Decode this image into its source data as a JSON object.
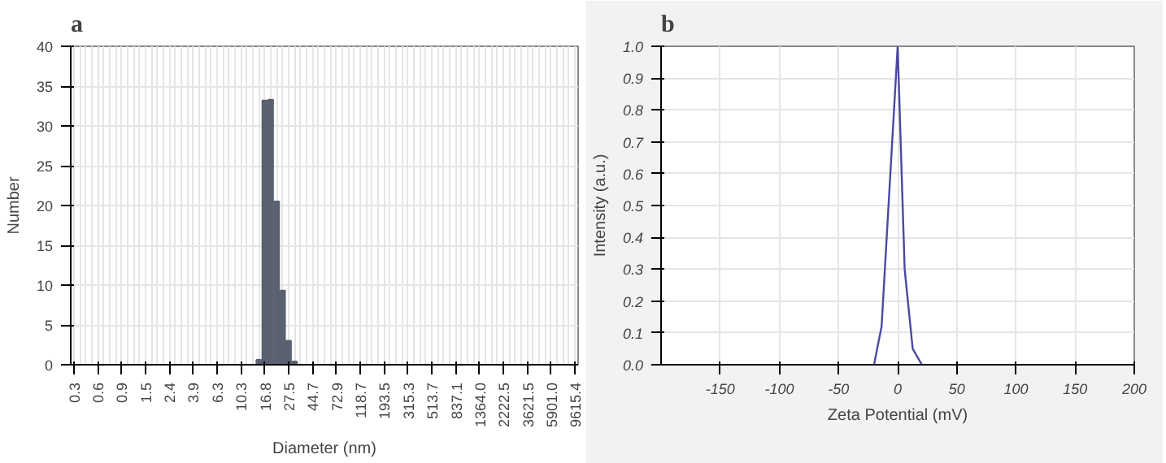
{
  "chart_data": [
    {
      "type": "bar",
      "title": "a",
      "xlabel": "Diameter (nm)",
      "ylabel": "Number",
      "categories": [
        "0.3",
        null,
        null,
        null,
        "0.6",
        null,
        null,
        null,
        "0.9",
        null,
        null,
        null,
        "1.5",
        null,
        null,
        null,
        "2.4",
        null,
        null,
        null,
        "3.9",
        null,
        null,
        null,
        "6.3",
        null,
        null,
        null,
        "10.3",
        null,
        null,
        null,
        "16.8",
        null,
        null,
        null,
        "27.5",
        null,
        null,
        null,
        "44.7",
        null,
        null,
        null,
        "72.9",
        null,
        null,
        null,
        "118.7",
        null,
        null,
        null,
        "193.5",
        null,
        null,
        null,
        "315.3",
        null,
        null,
        null,
        "513.7",
        null,
        null,
        null,
        "837.1",
        null,
        null,
        null,
        "1364.0",
        null,
        null,
        null,
        "2222.5",
        null,
        null,
        null,
        "3621.5",
        null,
        null,
        null,
        "5901.0",
        null,
        null,
        null,
        "9615.4"
      ],
      "values": [
        0,
        0,
        0,
        0,
        0,
        0,
        0,
        0,
        0,
        0,
        0,
        0,
        0,
        0,
        0,
        0,
        0,
        0,
        0,
        0,
        0,
        0,
        0,
        0,
        0,
        0,
        0,
        0,
        0,
        0,
        0,
        0.6,
        33.2,
        33.3,
        20.5,
        9.3,
        3.0,
        0.4,
        0,
        0,
        0,
        0,
        0,
        0,
        0,
        0,
        0,
        0,
        0,
        0,
        0,
        0,
        0,
        0,
        0,
        0,
        0,
        0,
        0,
        0,
        0,
        0,
        0,
        0,
        0,
        0,
        0,
        0,
        0,
        0,
        0,
        0,
        0,
        0,
        0,
        0,
        0,
        0,
        0,
        0,
        0,
        0,
        0,
        0,
        0
      ],
      "color": "#5a6270",
      "ylim": [
        0,
        40
      ],
      "yticks": [
        0,
        5,
        10,
        15,
        20,
        25,
        30,
        35,
        40
      ],
      "grid": true
    },
    {
      "type": "line",
      "title": "b",
      "xlabel": "Zeta Potential (mV)",
      "ylabel": "Intensity (a.u.)",
      "x": [
        -20,
        -13.6,
        0,
        5.9,
        12.7,
        20.5
      ],
      "values": [
        0,
        0.12,
        1.0,
        0.3,
        0.05,
        0
      ],
      "color": "#4a4aa0",
      "xlim": [
        -200,
        200
      ],
      "xticks": [
        -150,
        -100,
        -50,
        0,
        50,
        100,
        150,
        200
      ],
      "ylim": [
        0,
        1
      ],
      "yticks": [
        {
          "value": 0,
          "label": "0.0"
        },
        0.1,
        0.2,
        0.3,
        0.4,
        0.5,
        0.6,
        0.7,
        0.8,
        0.9,
        {
          "value": 1,
          "label": "1.0"
        }
      ],
      "grid": true
    }
  ]
}
